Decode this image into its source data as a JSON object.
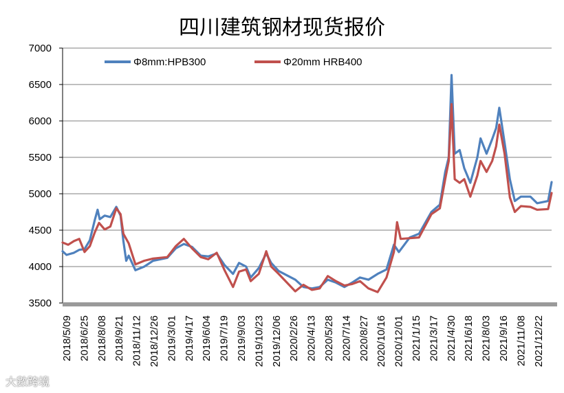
{
  "watermark": "大數跨境",
  "chart_data": {
    "type": "line",
    "title": "四川建筑钢材现货报价",
    "xlabel": "",
    "ylabel": "",
    "ylim": [
      3500,
      7000
    ],
    "yticks": [
      3500,
      4000,
      4500,
      5000,
      5500,
      6000,
      6500,
      7000
    ],
    "xlim": [
      "2018-05-09",
      "2022-02-20"
    ],
    "xtick_labels": [
      "2018/5/09",
      "2018/6/25",
      "2018/8/08",
      "2018/9/21",
      "2018/11/12",
      "2018/12/26",
      "2019/3/01",
      "2019/4/17",
      "2019/6/04",
      "2019/7/19",
      "2019/9/03",
      "2019/10/23",
      "2019/12/06",
      "2020/2/26",
      "2020/4/13",
      "2020/5/28",
      "2020/7/14",
      "2020/8/27",
      "2020/10/16",
      "2020/12/01",
      "2021/1/15",
      "2021/3/17",
      "2021/4/30",
      "2021/6/18",
      "2021/8/03",
      "2021/9/16",
      "2021/11/08",
      "2021/12/22"
    ],
    "grid": "horizontal",
    "legend_position": "top-left",
    "series": [
      {
        "name": "Φ8mm:HPB300",
        "color": "#4f81bd",
        "points": [
          [
            "2018-05-09",
            4210
          ],
          [
            "2018-05-20",
            4160
          ],
          [
            "2018-06-10",
            4190
          ],
          [
            "2018-06-25",
            4230
          ],
          [
            "2018-07-10",
            4240
          ],
          [
            "2018-07-25",
            4360
          ],
          [
            "2018-08-08",
            4640
          ],
          [
            "2018-08-16",
            4780
          ],
          [
            "2018-08-22",
            4650
          ],
          [
            "2018-09-05",
            4700
          ],
          [
            "2018-09-21",
            4680
          ],
          [
            "2018-10-08",
            4820
          ],
          [
            "2018-10-20",
            4700
          ],
          [
            "2018-10-28",
            4350
          ],
          [
            "2018-11-05",
            4080
          ],
          [
            "2018-11-12",
            4150
          ],
          [
            "2018-12-01",
            3950
          ],
          [
            "2018-12-26",
            4000
          ],
          [
            "2019-01-20",
            4080
          ],
          [
            "2019-03-01",
            4120
          ],
          [
            "2019-03-25",
            4250
          ],
          [
            "2019-04-17",
            4310
          ],
          [
            "2019-05-10",
            4270
          ],
          [
            "2019-06-04",
            4150
          ],
          [
            "2019-06-25",
            4140
          ],
          [
            "2019-07-19",
            4180
          ],
          [
            "2019-08-10",
            4020
          ],
          [
            "2019-09-03",
            3900
          ],
          [
            "2019-09-20",
            4050
          ],
          [
            "2019-10-10",
            4000
          ],
          [
            "2019-10-23",
            3850
          ],
          [
            "2019-11-15",
            3980
          ],
          [
            "2019-12-06",
            4180
          ],
          [
            "2019-12-20",
            4050
          ],
          [
            "2020-01-10",
            3940
          ],
          [
            "2020-02-26",
            3820
          ],
          [
            "2020-03-20",
            3720
          ],
          [
            "2020-04-13",
            3700
          ],
          [
            "2020-05-05",
            3720
          ],
          [
            "2020-05-28",
            3820
          ],
          [
            "2020-06-20",
            3780
          ],
          [
            "2020-07-14",
            3720
          ],
          [
            "2020-08-05",
            3780
          ],
          [
            "2020-08-27",
            3850
          ],
          [
            "2020-09-20",
            3820
          ],
          [
            "2020-10-16",
            3900
          ],
          [
            "2020-11-10",
            3960
          ],
          [
            "2020-12-01",
            4300
          ],
          [
            "2020-12-15",
            4200
          ],
          [
            "2021-01-15",
            4400
          ],
          [
            "2021-02-10",
            4450
          ],
          [
            "2021-03-17",
            4750
          ],
          [
            "2021-04-10",
            4850
          ],
          [
            "2021-04-25",
            5300
          ],
          [
            "2021-05-05",
            5500
          ],
          [
            "2021-05-13",
            6630
          ],
          [
            "2021-05-22",
            5550
          ],
          [
            "2021-06-05",
            5600
          ],
          [
            "2021-06-18",
            5350
          ],
          [
            "2021-07-05",
            5150
          ],
          [
            "2021-07-25",
            5500
          ],
          [
            "2021-08-03",
            5760
          ],
          [
            "2021-08-20",
            5550
          ],
          [
            "2021-09-05",
            5750
          ],
          [
            "2021-09-16",
            5900
          ],
          [
            "2021-09-25",
            6180
          ],
          [
            "2021-10-10",
            5700
          ],
          [
            "2021-10-25",
            5200
          ],
          [
            "2021-11-08",
            4900
          ],
          [
            "2021-11-25",
            4960
          ],
          [
            "2021-12-22",
            4960
          ],
          [
            "2022-01-10",
            4870
          ],
          [
            "2022-02-10",
            4900
          ],
          [
            "2022-02-20",
            5160
          ]
        ]
      },
      {
        "name": "Φ20mm HRB400",
        "color": "#c0504d",
        "points": [
          [
            "2018-05-09",
            4330
          ],
          [
            "2018-05-25",
            4300
          ],
          [
            "2018-06-10",
            4350
          ],
          [
            "2018-06-25",
            4380
          ],
          [
            "2018-07-10",
            4200
          ],
          [
            "2018-07-25",
            4280
          ],
          [
            "2018-08-08",
            4470
          ],
          [
            "2018-08-20",
            4600
          ],
          [
            "2018-09-05",
            4510
          ],
          [
            "2018-09-21",
            4550
          ],
          [
            "2018-10-08",
            4800
          ],
          [
            "2018-10-20",
            4720
          ],
          [
            "2018-10-28",
            4450
          ],
          [
            "2018-11-12",
            4320
          ],
          [
            "2018-12-01",
            4030
          ],
          [
            "2018-12-26",
            4080
          ],
          [
            "2019-01-20",
            4110
          ],
          [
            "2019-03-01",
            4130
          ],
          [
            "2019-03-25",
            4280
          ],
          [
            "2019-04-17",
            4380
          ],
          [
            "2019-05-10",
            4250
          ],
          [
            "2019-06-04",
            4130
          ],
          [
            "2019-06-25",
            4100
          ],
          [
            "2019-07-19",
            4190
          ],
          [
            "2019-08-10",
            3950
          ],
          [
            "2019-09-03",
            3720
          ],
          [
            "2019-09-20",
            3930
          ],
          [
            "2019-10-10",
            3960
          ],
          [
            "2019-10-23",
            3800
          ],
          [
            "2019-11-15",
            3900
          ],
          [
            "2019-12-06",
            4210
          ],
          [
            "2019-12-20",
            4000
          ],
          [
            "2020-01-10",
            3900
          ],
          [
            "2020-02-26",
            3660
          ],
          [
            "2020-03-20",
            3750
          ],
          [
            "2020-04-13",
            3680
          ],
          [
            "2020-05-05",
            3700
          ],
          [
            "2020-05-28",
            3870
          ],
          [
            "2020-06-20",
            3800
          ],
          [
            "2020-07-14",
            3740
          ],
          [
            "2020-08-05",
            3760
          ],
          [
            "2020-08-27",
            3800
          ],
          [
            "2020-09-20",
            3700
          ],
          [
            "2020-10-16",
            3650
          ],
          [
            "2020-11-10",
            3850
          ],
          [
            "2020-12-01",
            4200
          ],
          [
            "2020-12-10",
            4610
          ],
          [
            "2020-12-20",
            4380
          ],
          [
            "2021-01-15",
            4390
          ],
          [
            "2021-02-10",
            4400
          ],
          [
            "2021-03-17",
            4720
          ],
          [
            "2021-04-10",
            4800
          ],
          [
            "2021-04-25",
            5200
          ],
          [
            "2021-05-05",
            5450
          ],
          [
            "2021-05-13",
            6230
          ],
          [
            "2021-05-22",
            5200
          ],
          [
            "2021-06-05",
            5150
          ],
          [
            "2021-06-18",
            5200
          ],
          [
            "2021-07-05",
            4960
          ],
          [
            "2021-07-25",
            5250
          ],
          [
            "2021-08-03",
            5450
          ],
          [
            "2021-08-20",
            5300
          ],
          [
            "2021-09-05",
            5450
          ],
          [
            "2021-09-16",
            5650
          ],
          [
            "2021-09-25",
            5950
          ],
          [
            "2021-10-10",
            5550
          ],
          [
            "2021-10-25",
            4950
          ],
          [
            "2021-11-08",
            4750
          ],
          [
            "2021-11-25",
            4830
          ],
          [
            "2021-12-22",
            4820
          ],
          [
            "2022-01-10",
            4780
          ],
          [
            "2022-02-10",
            4790
          ],
          [
            "2022-02-20",
            5010
          ]
        ]
      }
    ]
  }
}
